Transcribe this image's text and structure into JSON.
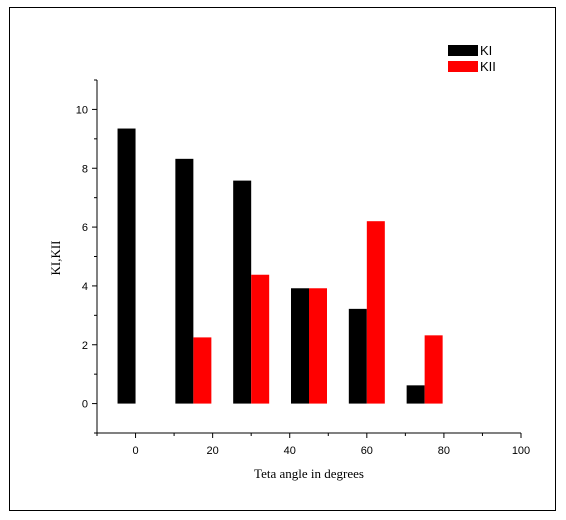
{
  "chart_data": {
    "type": "bar",
    "x": [
      0,
      15,
      30,
      45,
      60,
      75,
      90
    ],
    "series": [
      {
        "name": "KI",
        "color": "#000000",
        "values": [
          9.35,
          8.32,
          7.58,
          3.92,
          3.22,
          0.62,
          0.0
        ]
      },
      {
        "name": "KII",
        "color": "#ff0000",
        "values": [
          0.0,
          2.25,
          4.38,
          3.92,
          6.2,
          2.32,
          0.0
        ]
      }
    ],
    "xlabel": "Teta angle in degrees",
    "ylabel": "KI,KII",
    "xlim": [
      -10,
      100
    ],
    "ylim": [
      -1,
      11
    ],
    "xticks": [
      0,
      20,
      40,
      60,
      80,
      100
    ],
    "yticks": [
      0,
      2,
      4,
      6,
      8,
      10
    ],
    "grid": false,
    "legend_position": "top-right"
  }
}
